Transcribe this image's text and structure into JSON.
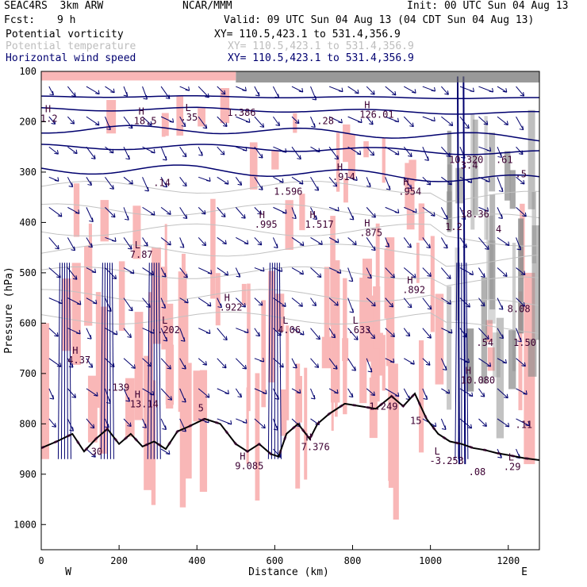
{
  "header": {
    "run": "SEAC4RS  3km ARW",
    "org": "NCAR/MMM",
    "init": "Init: 00 UTC Sun 04 Aug 13",
    "fcst_label": "Fcst:",
    "fcst_value": "9 h",
    "valid": "Valid: 09 UTC Sun 04 Aug 13 (04 CDT Sun 04 Aug 13)"
  },
  "fields": [
    {
      "name": "Potential vorticity",
      "xy": "XY= 110.5,423.1 to 531.4,356.9",
      "color": "#000000"
    },
    {
      "name": "Potential temperature",
      "xy": "XY= 110.5,423.1 to 531.4,356.9",
      "color": "#bdbdbd"
    },
    {
      "name": "Horizontal wind speed",
      "xy": "XY= 110.5,423.1 to 531.4,356.9",
      "color": "#000070"
    }
  ],
  "colors": {
    "pv_shade_pink": "#f9b7b7",
    "pv_shade_gray": "#8c8c8c",
    "wind_contour": "#00006e",
    "pv_contour": "#3c0032",
    "theta_contour": "#c2c2c2",
    "terrain": "#000000"
  },
  "chart_data": {
    "type": "cross-section",
    "xlabel": "Distance (km)",
    "ylabel": "Pressure (hPa)",
    "xlim": [
      0,
      1280
    ],
    "ylim": [
      1050,
      100
    ],
    "x_ticks": [
      0,
      200,
      400,
      600,
      800,
      1000,
      1200
    ],
    "y_ticks": [
      100,
      200,
      300,
      400,
      500,
      600,
      700,
      800,
      900,
      1000
    ],
    "endpoints": {
      "left": "W",
      "right": "E"
    },
    "terrain_pressure": [
      [
        0,
        848
      ],
      [
        40,
        835
      ],
      [
        80,
        820
      ],
      [
        110,
        855
      ],
      [
        140,
        830
      ],
      [
        170,
        810
      ],
      [
        200,
        840
      ],
      [
        230,
        820
      ],
      [
        260,
        845
      ],
      [
        290,
        835
      ],
      [
        320,
        850
      ],
      [
        350,
        815
      ],
      [
        380,
        805
      ],
      [
        420,
        790
      ],
      [
        460,
        800
      ],
      [
        500,
        840
      ],
      [
        530,
        855
      ],
      [
        560,
        840
      ],
      [
        590,
        860
      ],
      [
        610,
        865
      ],
      [
        630,
        820
      ],
      [
        660,
        800
      ],
      [
        690,
        830
      ],
      [
        710,
        800
      ],
      [
        740,
        780
      ],
      [
        780,
        760
      ],
      [
        820,
        765
      ],
      [
        860,
        770
      ],
      [
        900,
        745
      ],
      [
        930,
        765
      ],
      [
        960,
        740
      ],
      [
        990,
        790
      ],
      [
        1020,
        820
      ],
      [
        1050,
        835
      ],
      [
        1080,
        840
      ],
      [
        1110,
        848
      ],
      [
        1140,
        852
      ],
      [
        1170,
        858
      ],
      [
        1200,
        862
      ],
      [
        1240,
        868
      ],
      [
        1280,
        872
      ]
    ],
    "annotations": [
      {
        "label": "H",
        "value": "1.2",
        "x": 10,
        "p": 200
      },
      {
        "label": "H",
        "value": "18.5",
        "x": 250,
        "p": 205
      },
      {
        "label": "L",
        "value": ".35",
        "x": 370,
        "p": 198
      },
      {
        "label": "",
        "value": "1.386",
        "x": 490,
        "p": 188
      },
      {
        "label": "",
        "value": ".28",
        "x": 720,
        "p": 205
      },
      {
        "label": "H",
        "value": "126.01",
        "x": 830,
        "p": 192
      },
      {
        "label": "",
        "value": "10.320",
        "x": 1060,
        "p": 282
      },
      {
        "label": "",
        "value": "3.4",
        "x": 1090,
        "p": 293
      },
      {
        "label": "",
        "value": ".61",
        "x": 1180,
        "p": 282
      },
      {
        "label": "",
        "value": ".5",
        "x": 1230,
        "p": 310
      },
      {
        "label": "H",
        "value": ".914",
        "x": 760,
        "p": 316
      },
      {
        "label": "",
        "value": ".14",
        "x": 300,
        "p": 328
      },
      {
        "label": "",
        "value": "1.596",
        "x": 610,
        "p": 345
      },
      {
        "label": "H",
        "value": ".954",
        "x": 930,
        "p": 345
      },
      {
        "label": "",
        "value": "18.36",
        "x": 1090,
        "p": 390
      },
      {
        "label": "H",
        "value": ".995",
        "x": 560,
        "p": 410
      },
      {
        "label": "H",
        "value": "1.517",
        "x": 690,
        "p": 410
      },
      {
        "label": "H",
        "value": ".875",
        "x": 830,
        "p": 427
      },
      {
        "label": "",
        "value": "1.2",
        "x": 1050,
        "p": 415
      },
      {
        "label": "",
        "value": "4",
        "x": 1180,
        "p": 420
      },
      {
        "label": "L",
        "value": "7.87",
        "x": 240,
        "p": 470
      },
      {
        "label": "H",
        "value": ".892",
        "x": 940,
        "p": 540
      },
      {
        "label": "H",
        "value": ".922",
        "x": 470,
        "p": 575
      },
      {
        "label": "L",
        "value": ".202",
        "x": 310,
        "p": 620
      },
      {
        "label": "L",
        "value": "4.06",
        "x": 620,
        "p": 620
      },
      {
        "label": "L",
        "value": ".633",
        "x": 800,
        "p": 620
      },
      {
        "label": "",
        "value": "8.08",
        "x": 1210,
        "p": 578
      },
      {
        "label": "",
        "value": ".54",
        "x": 1130,
        "p": 645
      },
      {
        "label": "",
        "value": "1.50",
        "x": 1225,
        "p": 645
      },
      {
        "label": "H",
        "value": "4.37",
        "x": 80,
        "p": 680
      },
      {
        "label": "H",
        "value": "10.080",
        "x": 1090,
        "p": 720
      },
      {
        "label": "",
        "value": ".139",
        "x": 180,
        "p": 734
      },
      {
        "label": "H",
        "value": "13.14",
        "x": 240,
        "p": 767
      },
      {
        "label": "",
        "value": "5",
        "x": 415,
        "p": 775
      },
      {
        "label": "",
        "value": "-1.249",
        "x": 840,
        "p": 772
      },
      {
        "label": "",
        "value": "15",
        "x": 960,
        "p": 800
      },
      {
        "label": "",
        "value": ".11",
        "x": 1230,
        "p": 808
      },
      {
        "label": "",
        "value": "30",
        "x": 140,
        "p": 862
      },
      {
        "label": "H",
        "value": "9.085",
        "x": 510,
        "p": 890
      },
      {
        "label": "H",
        "value": "7.376",
        "x": 680,
        "p": 852
      },
      {
        "label": "L",
        "value": "-3.253",
        "x": 1010,
        "p": 880
      },
      {
        "label": "",
        "value": ".08",
        "x": 1110,
        "p": 902
      },
      {
        "label": "L",
        "value": ".29",
        "x": 1200,
        "p": 892
      }
    ]
  }
}
